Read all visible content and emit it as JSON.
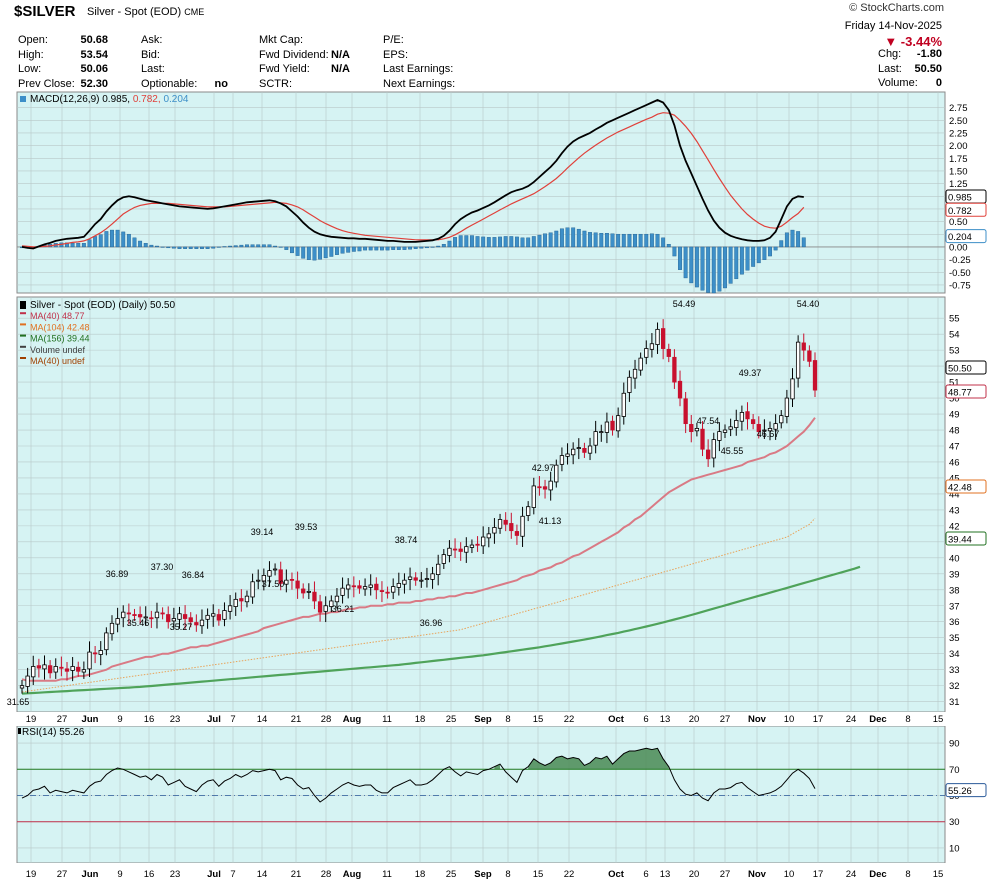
{
  "header": {
    "symbol": "$SILVER",
    "description": "Silver - Spot (EOD)",
    "exchange": "CME",
    "watermark": "© StockCharts.com",
    "date": "Friday  14-Nov-2025",
    "change_pct": "▼ -3.44%",
    "quote_left": [
      {
        "label": "Open:",
        "value": "50.68"
      },
      {
        "label": "High:",
        "value": "53.54"
      },
      {
        "label": "Low:",
        "value": "50.06"
      },
      {
        "label": "Prev Close:",
        "value": "52.30"
      }
    ],
    "quote_mid": [
      {
        "label": "Ask:",
        "value": ""
      },
      {
        "label": "Bid:",
        "value": ""
      },
      {
        "label": "Last:",
        "value": ""
      },
      {
        "label": "Optionable:",
        "value": "no"
      }
    ],
    "quote_mid2": [
      {
        "label": "Mkt Cap:",
        "value": ""
      },
      {
        "label": "Fwd Dividend:",
        "value": "N/A"
      },
      {
        "label": "Fwd Yield:",
        "value": "N/A"
      },
      {
        "label": "SCTR:",
        "value": ""
      }
    ],
    "quote_mid3": [
      {
        "label": "P/E:",
        "value": ""
      },
      {
        "label": "EPS:",
        "value": ""
      },
      {
        "label": "Last Earnings:",
        "value": ""
      },
      {
        "label": "Next Earnings:",
        "value": ""
      }
    ],
    "quote_right": [
      {
        "label": "Chg:",
        "value": "-1.80"
      },
      {
        "label": "Last:",
        "value": "50.50"
      },
      {
        "label": "Volume:",
        "value": "0"
      }
    ]
  },
  "chart_data": {
    "type": "candlestick",
    "x_tick_labels": [
      "19",
      "27",
      "Jun",
      "9",
      "16",
      "23",
      "Jul",
      "7",
      "14",
      "21",
      "28",
      "Aug",
      "11",
      "18",
      "25",
      "Sep",
      "8",
      "15",
      "22",
      "Oct",
      "6",
      "13",
      "20",
      "27",
      "Nov",
      "10",
      "17",
      "24",
      "Dec",
      "8",
      "15"
    ],
    "month_ticks": [
      "Jun",
      "Jul",
      "Aug",
      "Sep",
      "Oct",
      "Nov",
      "Dec"
    ],
    "closes": [
      32.0,
      32.6,
      33.2,
      33.1,
      33.3,
      32.8,
      33.2,
      33.1,
      32.9,
      33.2,
      32.9,
      33.0,
      34.1,
      34.0,
      34.2,
      35.3,
      35.9,
      36.2,
      36.6,
      36.5,
      36.4,
      36.3,
      36.3,
      36.2,
      36.6,
      36.5,
      36.0,
      36.2,
      36.5,
      36.2,
      36.0,
      35.8,
      36.1,
      36.4,
      36.5,
      36.1,
      36.7,
      37.0,
      37.4,
      37.3,
      37.6,
      38.5,
      38.6,
      38.9,
      39.2,
      39.3,
      38.4,
      38.6,
      38.6,
      38.1,
      37.8,
      37.9,
      37.3,
      36.6,
      37.0,
      37.3,
      37.6,
      38.1,
      38.3,
      38.2,
      38.1,
      38.2,
      38.3,
      38.0,
      37.9,
      37.8,
      38.2,
      38.4,
      38.6,
      38.8,
      38.6,
      38.6,
      38.7,
      39.0,
      39.6,
      40.2,
      40.6,
      40.5,
      40.4,
      40.7,
      40.8,
      40.8,
      41.3,
      41.5,
      41.9,
      42.4,
      42.1,
      41.7,
      41.4,
      42.6,
      43.2,
      44.5,
      44.4,
      44.3,
      44.8,
      45.8,
      46.4,
      46.5,
      46.8,
      46.9,
      46.6,
      47.0,
      47.9,
      47.9,
      48.5,
      48.0,
      48.9,
      50.3,
      51.3,
      51.8,
      52.5,
      53.1,
      53.4,
      54.3,
      53.1,
      52.6,
      51.0,
      50.0,
      48.4,
      47.9,
      48.1,
      46.8,
      46.2,
      47.4,
      47.9,
      48.0,
      48.2,
      48.6,
      49.1,
      48.7,
      48.4,
      47.9,
      48.0,
      48.1,
      48.4,
      48.9,
      50.0,
      51.2,
      53.5,
      53.0,
      52.3,
      50.5
    ],
    "ma40": [
      32.4,
      32.3,
      32.3,
      32.3,
      32.3,
      32.3,
      32.3,
      32.4,
      32.4,
      32.5,
      32.6,
      32.6,
      32.7,
      32.8,
      32.9,
      33.0,
      33.2,
      33.3,
      33.4,
      33.5,
      33.6,
      33.7,
      33.8,
      33.8,
      33.9,
      34.0,
      34.0,
      34.1,
      34.2,
      34.3,
      34.4,
      34.4,
      34.5,
      34.5,
      34.6,
      34.7,
      34.8,
      34.9,
      35.0,
      35.1,
      35.2,
      35.3,
      35.4,
      35.6,
      35.7,
      35.8,
      35.9,
      36.0,
      36.1,
      36.2,
      36.3,
      36.3,
      36.4,
      36.5,
      36.5,
      36.6,
      36.6,
      36.7,
      36.8,
      36.8,
      36.9,
      36.9,
      37.0,
      37.0,
      37.0,
      37.1,
      37.1,
      37.2,
      37.2,
      37.2,
      37.3,
      37.3,
      37.4,
      37.4,
      37.5,
      37.5,
      37.6,
      37.6,
      37.7,
      37.8,
      37.8,
      37.9,
      38.0,
      38.1,
      38.2,
      38.3,
      38.4,
      38.5,
      38.6,
      38.8,
      38.9,
      39.0,
      39.2,
      39.3,
      39.4,
      39.6,
      39.7,
      39.9,
      40.1,
      40.2,
      40.4,
      40.6,
      40.8,
      41.0,
      41.2,
      41.4,
      41.6,
      41.9,
      42.1,
      42.4,
      42.6,
      42.9,
      43.2,
      43.5,
      43.8,
      44.1,
      44.3,
      44.5,
      44.7,
      44.9,
      45.0,
      45.1,
      45.2,
      45.3,
      45.4,
      45.5,
      45.6,
      45.7,
      45.8,
      46.0,
      46.1,
      46.2,
      46.3,
      46.5,
      46.6,
      46.8,
      47.0,
      47.3,
      47.6,
      47.9,
      48.3,
      48.77
    ],
    "ma104": [
      31.6,
      31.65,
      31.7,
      31.75,
      31.8,
      31.85,
      31.9,
      31.95,
      32.0,
      32.05,
      32.1,
      32.15,
      32.2,
      32.25,
      32.3,
      32.35,
      32.4,
      32.45,
      32.5,
      32.55,
      32.6,
      32.65,
      32.7,
      32.75,
      32.8,
      32.85,
      32.9,
      32.95,
      33.0,
      33.05,
      33.1,
      33.15,
      33.2,
      33.25,
      33.3,
      33.35,
      33.4,
      33.45,
      33.5,
      33.55,
      33.6,
      33.65,
      33.7,
      33.75,
      33.8,
      33.85,
      33.9,
      33.95,
      34.0,
      34.05,
      34.1,
      34.15,
      34.2,
      34.25,
      34.3,
      34.35,
      34.4,
      34.45,
      34.5,
      34.55,
      34.6,
      34.65,
      34.7,
      34.75,
      34.8,
      34.85,
      34.9,
      34.95,
      35.0,
      35.05,
      35.1,
      35.15,
      35.2,
      35.25,
      35.3,
      35.35,
      35.4,
      35.45,
      35.5,
      35.6,
      35.7,
      35.8,
      35.9,
      36.0,
      36.1,
      36.2,
      36.3,
      36.4,
      36.5,
      36.6,
      36.7,
      36.8,
      36.9,
      37.0,
      37.1,
      37.2,
      37.3,
      37.4,
      37.5,
      37.6,
      37.7,
      37.8,
      37.9,
      38.0,
      38.1,
      38.2,
      38.3,
      38.4,
      38.5,
      38.6,
      38.7,
      38.8,
      38.9,
      39.0,
      39.1,
      39.2,
      39.3,
      39.4,
      39.5,
      39.6,
      39.7,
      39.8,
      39.9,
      40.0,
      40.1,
      40.2,
      40.3,
      40.4,
      40.5,
      40.6,
      40.7,
      40.8,
      40.9,
      41.0,
      41.1,
      41.2,
      41.3,
      41.5,
      41.7,
      41.9,
      42.1,
      42.48
    ],
    "ma156": [
      31.5,
      31.52,
      31.54,
      31.56,
      31.58,
      31.6,
      31.62,
      31.64,
      31.66,
      31.68,
      31.7,
      31.72,
      31.74,
      31.76,
      31.78,
      31.8,
      31.82,
      31.84,
      31.86,
      31.88,
      31.9,
      31.92,
      31.95,
      31.98,
      32.01,
      32.04,
      32.07,
      32.1,
      32.13,
      32.16,
      32.19,
      32.22,
      32.25,
      32.28,
      32.31,
      32.34,
      32.37,
      32.4,
      32.43,
      32.46,
      32.49,
      32.52,
      32.55,
      32.58,
      32.61,
      32.64,
      32.67,
      32.7,
      32.73,
      32.76,
      32.79,
      32.82,
      32.85,
      32.88,
      32.91,
      32.94,
      32.97,
      33.0,
      33.03,
      33.06,
      33.09,
      33.12,
      33.15,
      33.18,
      33.21,
      33.24,
      33.27,
      33.3,
      33.34,
      33.38,
      33.42,
      33.46,
      33.5,
      33.54,
      33.58,
      33.62,
      33.66,
      33.7,
      33.74,
      33.78,
      33.82,
      33.86,
      33.9,
      33.95,
      34.0,
      34.05,
      34.1,
      34.15,
      34.2,
      34.25,
      34.3,
      34.35,
      34.4,
      34.46,
      34.52,
      34.58,
      34.64,
      34.7,
      34.76,
      34.82,
      34.88,
      34.95,
      35.02,
      35.09,
      35.16,
      35.23,
      35.3,
      35.38,
      35.46,
      35.54,
      35.62,
      35.7,
      35.78,
      35.87,
      35.96,
      36.05,
      36.14,
      36.23,
      36.32,
      36.42,
      36.52,
      36.62,
      36.72,
      36.82,
      36.92,
      37.02,
      37.12,
      37.22,
      37.32,
      37.42,
      37.52,
      37.62,
      37.72,
      37.82,
      37.92,
      38.02,
      38.12,
      38.22,
      38.32,
      38.42,
      38.52,
      38.62,
      38.72,
      38.82,
      38.92,
      39.02,
      39.12,
      39.22,
      39.32,
      39.44
    ],
    "price_axis": [
      55,
      54,
      53,
      52,
      51,
      50,
      49,
      48,
      47,
      46,
      45,
      44,
      43,
      42,
      41,
      40,
      39,
      38,
      37,
      36,
      35,
      34,
      33,
      32,
      31
    ],
    "price_labels": [
      "54.49",
      "54.40",
      "49.37",
      "47.54",
      "46.67",
      "45.55",
      "42.97",
      "41.13",
      "39.14",
      "39.53",
      "38.74",
      "37.50",
      "36.89",
      "37.30",
      "36.84",
      "35.46",
      "35.27",
      "36.21",
      "36.96",
      "31.65"
    ],
    "price_legend": [
      {
        "text": "Silver - Spot (EOD) (Daily) 50.50",
        "color": "#000000"
      },
      {
        "text": "MA(40) 48.77",
        "color": "#c0304a"
      },
      {
        "text": "MA(104) 42.48",
        "color": "#e07020"
      },
      {
        "text": "MA(156) 39.44",
        "color": "#207020"
      },
      {
        "text": "Volume undef",
        "color": "#404040"
      },
      {
        "text": "MA(40) undef",
        "color": "#a04000"
      }
    ],
    "price_tags": {
      "last": "50.50",
      "ma40": "48.77",
      "ma104": "42.48",
      "ma156": "39.44"
    },
    "macd": {
      "legend": "MACD(12,26,9)",
      "values": {
        "macd": "0.985",
        "signal": "0.782",
        "hist": "0.204"
      },
      "axis": [
        "2.75",
        "2.50",
        "2.25",
        "2.00",
        "1.75",
        "1.50",
        "1.25",
        "1.00",
        "0.75",
        "0.50",
        "0.25",
        "0.00",
        "-0.25",
        "-0.50",
        "-0.75"
      ],
      "tags": {
        "macd": "0.985",
        "signal": "0.782",
        "hist": "0.204"
      },
      "macd_line": [
        0.0,
        -0.02,
        -0.03,
        0.01,
        0.05,
        0.08,
        0.12,
        0.14,
        0.16,
        0.17,
        0.18,
        0.2,
        0.32,
        0.45,
        0.55,
        0.7,
        0.82,
        0.92,
        0.98,
        1.0,
        0.98,
        0.95,
        0.92,
        0.9,
        0.88,
        0.86,
        0.84,
        0.82,
        0.8,
        0.79,
        0.78,
        0.77,
        0.76,
        0.75,
        0.76,
        0.78,
        0.8,
        0.82,
        0.84,
        0.86,
        0.88,
        0.89,
        0.9,
        0.91,
        0.92,
        0.9,
        0.86,
        0.8,
        0.7,
        0.6,
        0.48,
        0.38,
        0.3,
        0.25,
        0.22,
        0.2,
        0.19,
        0.18,
        0.17,
        0.17,
        0.16,
        0.16,
        0.15,
        0.14,
        0.13,
        0.12,
        0.12,
        0.11,
        0.1,
        0.1,
        0.1,
        0.11,
        0.12,
        0.13,
        0.16,
        0.22,
        0.32,
        0.45,
        0.55,
        0.62,
        0.68,
        0.72,
        0.77,
        0.82,
        0.88,
        0.95,
        1.02,
        1.08,
        1.12,
        1.15,
        1.2,
        1.28,
        1.38,
        1.48,
        1.58,
        1.7,
        1.85,
        1.98,
        2.08,
        2.15,
        2.2,
        2.25,
        2.32,
        2.38,
        2.45,
        2.5,
        2.55,
        2.6,
        2.65,
        2.7,
        2.75,
        2.8,
        2.85,
        2.9,
        2.85,
        2.7,
        2.4,
        2.0,
        1.7,
        1.45,
        1.2,
        0.95,
        0.72,
        0.52,
        0.38,
        0.28,
        0.22,
        0.18,
        0.15,
        0.13,
        0.12,
        0.12,
        0.13,
        0.18,
        0.3,
        0.55,
        0.8,
        0.95,
        1.0,
        0.985
      ],
      "signal_line": [
        0.02,
        0.01,
        0.0,
        0.0,
        0.01,
        0.02,
        0.04,
        0.05,
        0.07,
        0.09,
        0.1,
        0.12,
        0.16,
        0.22,
        0.28,
        0.36,
        0.45,
        0.55,
        0.65,
        0.72,
        0.78,
        0.82,
        0.84,
        0.86,
        0.86,
        0.86,
        0.86,
        0.85,
        0.84,
        0.83,
        0.82,
        0.81,
        0.8,
        0.79,
        0.79,
        0.79,
        0.79,
        0.8,
        0.81,
        0.82,
        0.83,
        0.84,
        0.85,
        0.86,
        0.87,
        0.88,
        0.87,
        0.86,
        0.83,
        0.79,
        0.73,
        0.66,
        0.59,
        0.52,
        0.46,
        0.41,
        0.36,
        0.32,
        0.29,
        0.27,
        0.25,
        0.23,
        0.22,
        0.21,
        0.2,
        0.19,
        0.18,
        0.17,
        0.16,
        0.15,
        0.14,
        0.14,
        0.14,
        0.14,
        0.14,
        0.16,
        0.19,
        0.24,
        0.3,
        0.37,
        0.43,
        0.49,
        0.55,
        0.61,
        0.67,
        0.73,
        0.79,
        0.85,
        0.9,
        0.95,
        1.0,
        1.05,
        1.12,
        1.19,
        1.27,
        1.35,
        1.45,
        1.56,
        1.66,
        1.76,
        1.85,
        1.93,
        2.01,
        2.08,
        2.15,
        2.21,
        2.27,
        2.32,
        2.37,
        2.42,
        2.47,
        2.52,
        2.56,
        2.62,
        2.65,
        2.64,
        2.6,
        2.5,
        2.38,
        2.24,
        2.08,
        1.9,
        1.72,
        1.53,
        1.35,
        1.18,
        1.02,
        0.88,
        0.75,
        0.64,
        0.55,
        0.47,
        0.41,
        0.38,
        0.37,
        0.41,
        0.49,
        0.58,
        0.66,
        0.782
      ]
    },
    "rsi": {
      "legend": "RSI(14) 55.26",
      "axis": [
        "90",
        "70",
        "50",
        "30",
        "10"
      ],
      "overbought": 70,
      "oversold": 30,
      "last": "55.26",
      "values": [
        48,
        50,
        54,
        55,
        57,
        52,
        54,
        53,
        52,
        54,
        53,
        52,
        57,
        60,
        61,
        66,
        69,
        71,
        70,
        68,
        66,
        64,
        65,
        62,
        66,
        64,
        58,
        60,
        62,
        57,
        55,
        53,
        58,
        61,
        62,
        57,
        61,
        63,
        66,
        64,
        66,
        69,
        68,
        69,
        70,
        69,
        62,
        64,
        63,
        58,
        55,
        56,
        50,
        45,
        48,
        52,
        55,
        58,
        60,
        58,
        57,
        58,
        58,
        54,
        52,
        52,
        56,
        58,
        60,
        62,
        58,
        58,
        59,
        62,
        66,
        70,
        72,
        68,
        65,
        68,
        67,
        66,
        69,
        70,
        72,
        74,
        68,
        64,
        60,
        69,
        72,
        78,
        75,
        73,
        75,
        79,
        80,
        78,
        79,
        78,
        73,
        75,
        79,
        78,
        80,
        74,
        78,
        82,
        84,
        84,
        85,
        86,
        85,
        86,
        78,
        72,
        62,
        55,
        51,
        50,
        52,
        48,
        46,
        52,
        55,
        55,
        56,
        59,
        60,
        56,
        53,
        50,
        51,
        52,
        54,
        57,
        62,
        67,
        70,
        67,
        63,
        55.26
      ]
    }
  }
}
